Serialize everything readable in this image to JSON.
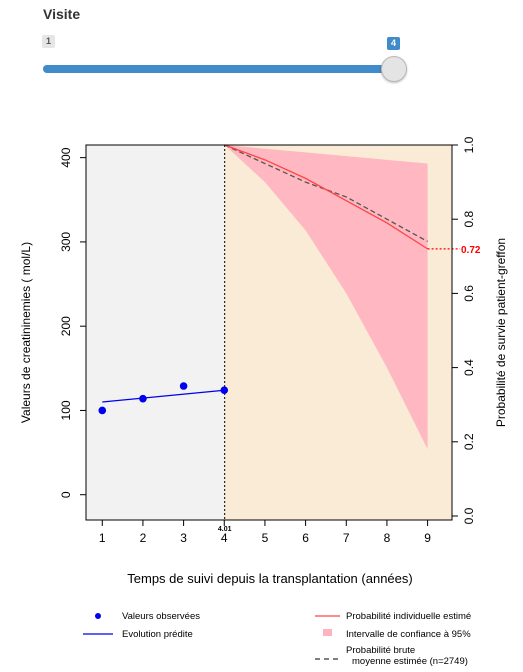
{
  "slider": {
    "label": "Visite",
    "min_label": "1",
    "value_label": "4",
    "min": 1,
    "max": 4,
    "value": 4
  },
  "chart_data": {
    "type": "line",
    "xlabel": "Temps de suivi depuis la transplantation (années)",
    "ylabel_left": "Valeurs de creatininemies  ( mol/L)",
    "ylabel_right": "Probabilité de survie patient-greffon",
    "x_ticks": [
      "1",
      "2",
      "3",
      "4",
      "5",
      "6",
      "7",
      "8",
      "9"
    ],
    "y_left_ticks": [
      "0",
      "100",
      "200",
      "300",
      "400"
    ],
    "y_right_ticks": [
      "0.0",
      "0.2",
      "0.4",
      "0.6",
      "0.8",
      "1.0"
    ],
    "xlim": [
      0.6,
      9.6
    ],
    "ylim_left": [
      -30,
      415
    ],
    "ylim_right": [
      0,
      1
    ],
    "cutoff_x": 4.01,
    "cutoff_label": "4.01",
    "end_label": "0.72",
    "observed_points": {
      "name": "Valeurs observées",
      "x": [
        1,
        2,
        3,
        4
      ],
      "y": [
        100,
        114,
        129,
        124
      ],
      "color": "#0000ee"
    },
    "predicted_line": {
      "name": "Evolution prédite",
      "x": [
        1,
        4
      ],
      "y": [
        110,
        124
      ],
      "color": "#0000ee"
    },
    "individual_survival": {
      "name": "Probabilité individuelle estimé",
      "x": [
        4.01,
        5,
        6,
        7,
        8,
        9
      ],
      "y": [
        1.0,
        0.96,
        0.91,
        0.85,
        0.79,
        0.72
      ],
      "color": "#ff4444"
    },
    "confidence_interval": {
      "name": "Intervalle de confiance à 95%",
      "x": [
        4.01,
        5,
        6,
        7,
        8,
        9
      ],
      "lower": [
        1.0,
        0.9,
        0.77,
        0.6,
        0.4,
        0.18
      ],
      "upper": [
        1.0,
        0.99,
        0.98,
        0.97,
        0.96,
        0.95
      ],
      "color": "#ffb3bf"
    },
    "crude_survival": {
      "name": "Probabilité brute",
      "name_line2": "moyenne estimée (n=2749)",
      "x": [
        4.01,
        5,
        6,
        7,
        8,
        9
      ],
      "y": [
        1.0,
        0.95,
        0.9,
        0.86,
        0.8,
        0.74
      ],
      "color": "#555555"
    },
    "colors": {
      "past_bg": "#f2f2f2",
      "future_bg": "#faebd7"
    }
  }
}
